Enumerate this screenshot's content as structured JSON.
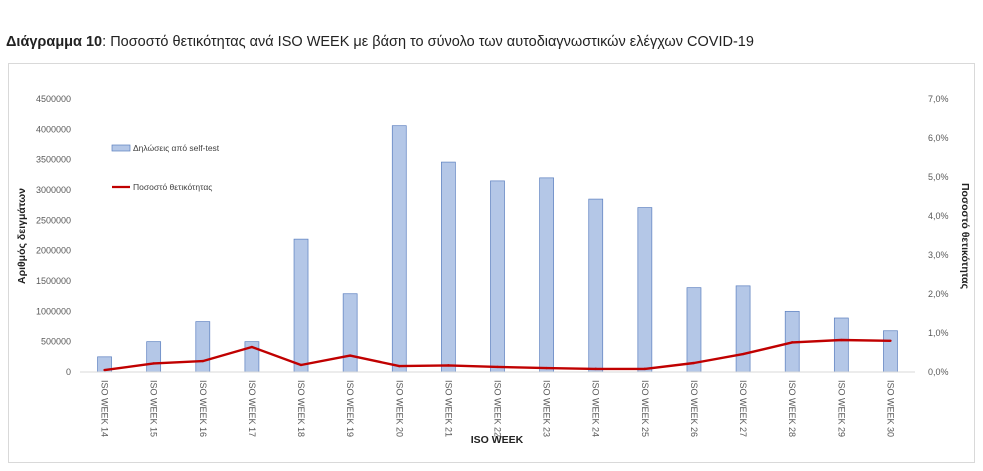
{
  "header": {
    "title_bold": "Διάγραμμα 10",
    "title_rest": ": Ποσοστό θετικότητας ανά ISO WEEK με βάση το σύνολο των αυτοδιαγνωστικών ελέγχων COVID-19"
  },
  "chart_data": {
    "type": "bar",
    "categories": [
      "ISO WEEK 14",
      "ISO WEEK 15",
      "ISO WEEK 16",
      "ISO WEEK 17",
      "ISO WEEK 18",
      "ISO WEEK 19",
      "ISO WEEK 20",
      "ISO WEEK 21",
      "ISO WEEK 22",
      "ISO WEEK 23",
      "ISO WEEK 24",
      "ISO WEEK 25",
      "ISO WEEK 26",
      "ISO WEEK 27",
      "ISO WEEK 28",
      "ISO WEEK 29",
      "ISO WEEK 30"
    ],
    "series": [
      {
        "name": "Δηλώσεις από self-test",
        "type": "bar",
        "axis": "left",
        "color": "#b4c7e7",
        "values": [
          250000,
          500000,
          830000,
          500000,
          2190000,
          1290000,
          4060000,
          3460000,
          3150000,
          3200000,
          2850000,
          2710000,
          1390000,
          1420000,
          1000000,
          890000,
          680000
        ]
      },
      {
        "name": "Ποσοστό θετικότητας",
        "type": "line",
        "axis": "right",
        "color": "#c00000",
        "values": [
          0.05,
          0.22,
          0.28,
          0.64,
          0.18,
          0.42,
          0.15,
          0.17,
          0.13,
          0.1,
          0.08,
          0.08,
          0.23,
          0.46,
          0.76,
          0.82,
          0.8
        ]
      }
    ],
    "xlabel": "ISO WEEK",
    "ylabel": "Αριθμός δειγμάτων",
    "y2label": "Ποσοστό θετικότητας",
    "ylim": [
      0,
      4500000
    ],
    "y2lim": [
      0,
      7.0
    ],
    "yticks": [
      "0",
      "500000",
      "1000000",
      "1500000",
      "2000000",
      "2500000",
      "3000000",
      "3500000",
      "4000000",
      "4500000"
    ],
    "y2ticks": [
      "0,0%",
      "1,0%",
      "2,0%",
      "3,0%",
      "4,0%",
      "5,0%",
      "6,0%",
      "7,0%"
    ],
    "legend_position": "upper-left",
    "grid": false
  }
}
